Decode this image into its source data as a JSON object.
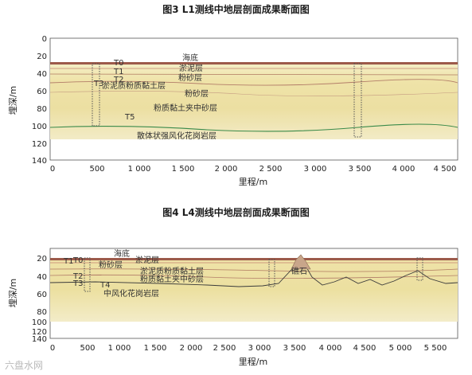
{
  "figures": [
    {
      "title": "图3 L1测线中地层剖面成果断面图",
      "ylabel": "埋深/m",
      "xlabel": "里程/m",
      "x_ticks": [
        "0",
        "500",
        "1 000",
        "1 500",
        "2 000",
        "2 500",
        "3 000",
        "3 500",
        "4 000",
        "4 500"
      ],
      "y_ticks": [
        "0",
        "20",
        "40",
        "60",
        "80",
        "100",
        "120",
        "140"
      ],
      "x_range": [
        0,
        4550
      ],
      "y_range": [
        0,
        140
      ],
      "layers": [
        "海底",
        "淤泥层",
        "粉砂层",
        "淤泥质粉质黏土层",
        "粉砂层",
        "粉质黏土夹中砂层",
        "散体状强风化花岗岩层"
      ],
      "markers": [
        "T0",
        "T1",
        "T2",
        "T3",
        "T5"
      ]
    },
    {
      "title": "图4 L4测线中地层剖面成果断面图",
      "ylabel": "埋深/m",
      "xlabel": "里程/m",
      "x_ticks": [
        "0",
        "500",
        "1 000",
        "1 500",
        "2 000",
        "2 500",
        "3 000",
        "3 500",
        "4 000",
        "4 500",
        "5 000",
        "5 500"
      ],
      "y_ticks": [
        "20",
        "40",
        "60",
        "80",
        "100",
        "120",
        "140"
      ],
      "x_range": [
        0,
        5800
      ],
      "y_range": [
        0,
        140
      ],
      "layers": [
        "海底",
        "淤泥层",
        "粉砂层",
        "淤泥质粉质黏土层",
        "粉质黏土夹中砂层",
        "中风化花岗岩层",
        "礁石"
      ],
      "markers": [
        "T1",
        "T0",
        "T2",
        "T3",
        "T4"
      ]
    }
  ],
  "watermark": "六盘水网"
}
